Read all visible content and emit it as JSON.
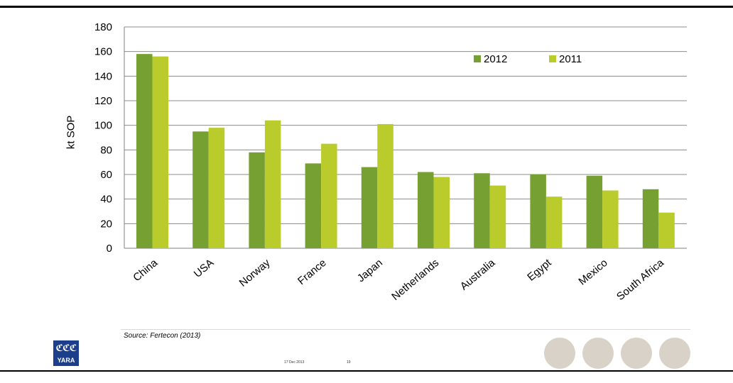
{
  "chart_data": {
    "type": "bar",
    "categories": [
      "China",
      "USA",
      "Norway",
      "France",
      "Japan",
      "Netherlands",
      "Australia",
      "Egypt",
      "Mexico",
      "South Africa"
    ],
    "series": [
      {
        "name": "2012",
        "color": "#77a033",
        "values": [
          158,
          95,
          78,
          69,
          66,
          62,
          61,
          60,
          59,
          48
        ]
      },
      {
        "name": "2011",
        "color": "#b9cc2b",
        "values": [
          156,
          98,
          104,
          85,
          101,
          58,
          51,
          42,
          47,
          29
        ]
      }
    ],
    "ylabel": "kt SOP",
    "ylim": [
      0,
      180
    ],
    "yticks": [
      0,
      20,
      40,
      60,
      80,
      100,
      120,
      140,
      160,
      180
    ],
    "grid": true,
    "legend": "top-right"
  },
  "footer": {
    "source": "Source: Fertecon (2013)",
    "date": "17 Dec 2013",
    "page": "19",
    "logo_text": "YARA",
    "logo_glyph": "ℭℭℭ"
  }
}
